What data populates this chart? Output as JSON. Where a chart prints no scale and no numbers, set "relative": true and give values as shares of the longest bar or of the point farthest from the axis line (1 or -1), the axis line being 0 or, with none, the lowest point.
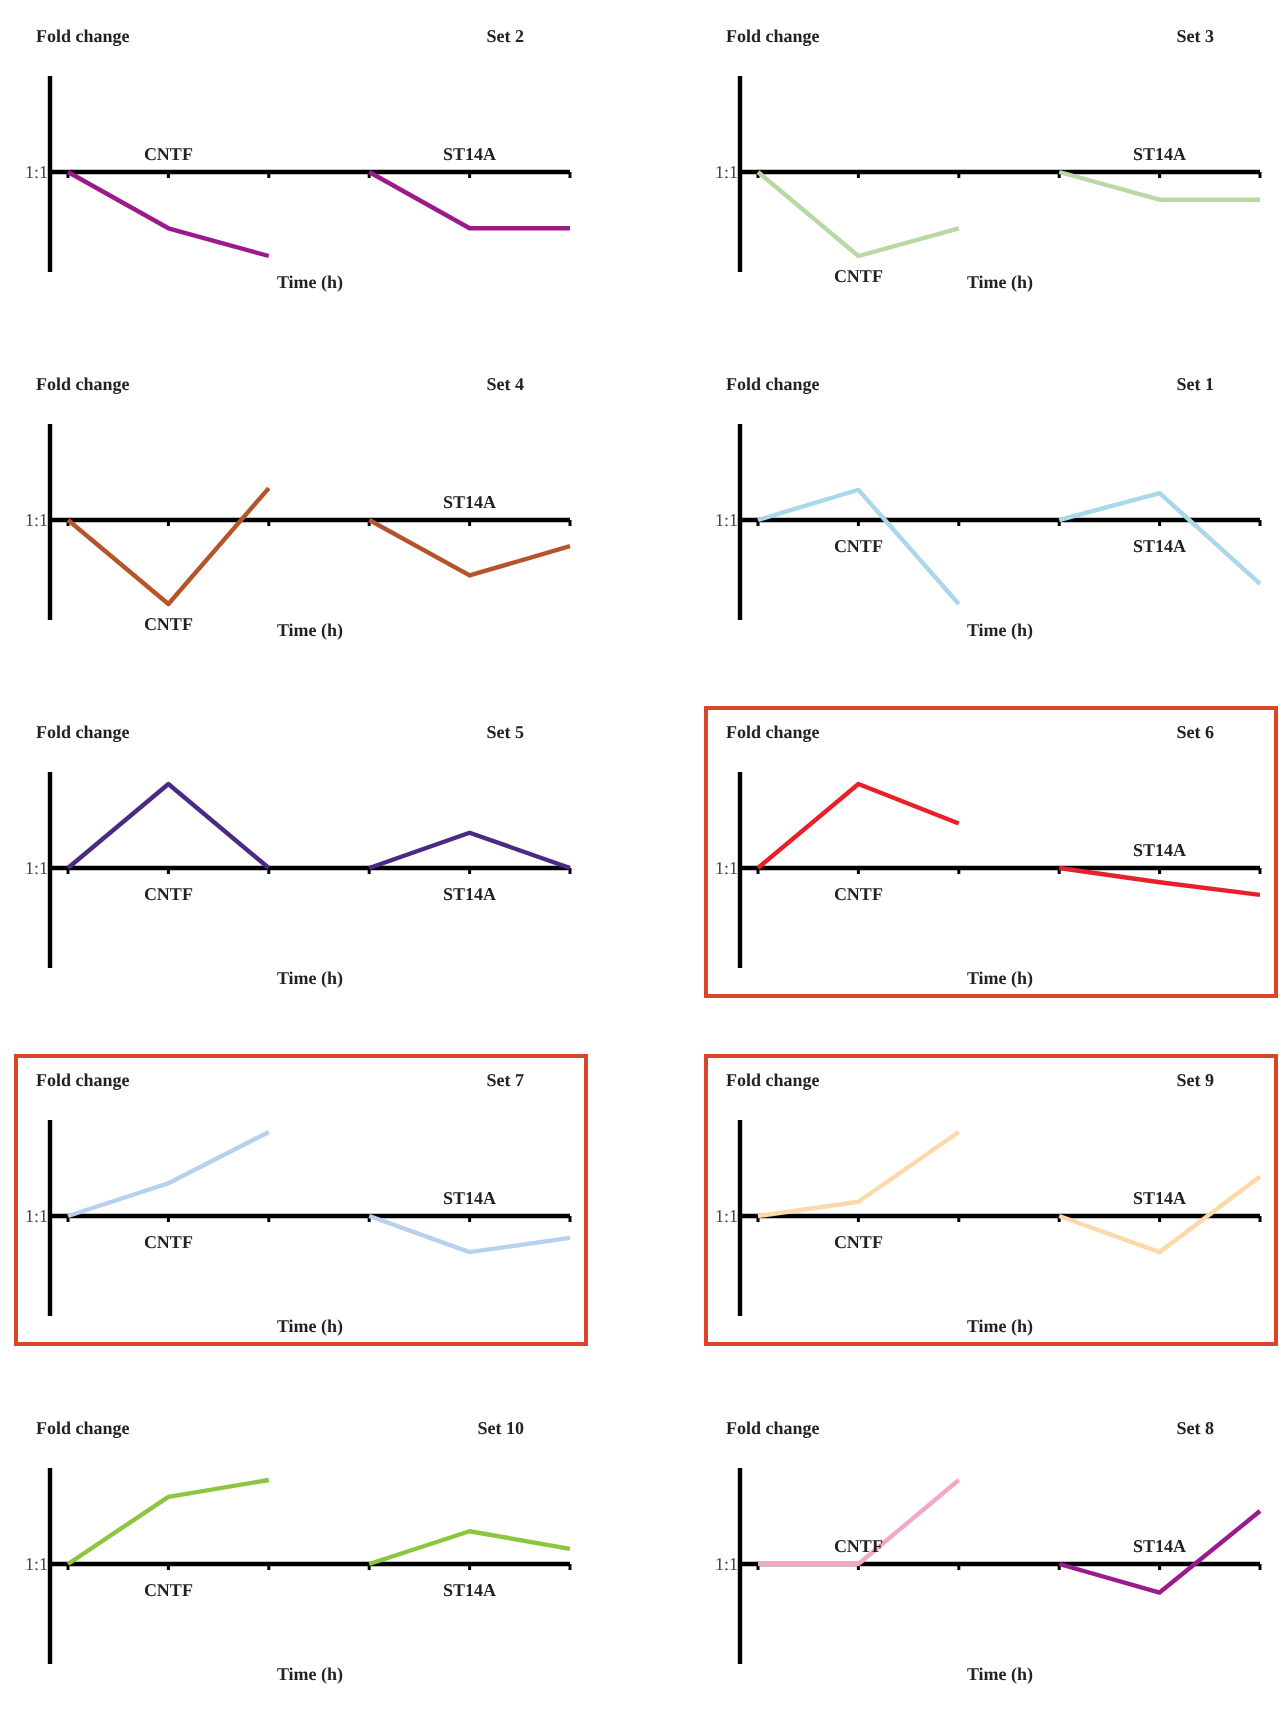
{
  "chart_data": [
    {
      "type": "line",
      "title": "Set 2",
      "ylabel": "Fold change",
      "xlabel": "Time (h)",
      "relative": true,
      "annotations": [
        "1:1"
      ],
      "categories": [
        null,
        null,
        null,
        null,
        null,
        null
      ],
      "series": [
        {
          "name": "CNTF",
          "color": "#9b1a8c",
          "values": [
            0,
            -0.67,
            -1,
            null,
            null,
            null
          ]
        },
        {
          "name": "ST14A",
          "color": "#9b1a8c",
          "values": [
            null,
            null,
            null,
            0,
            -0.67,
            -0.67
          ]
        }
      ]
    },
    {
      "type": "line",
      "title": "Set 3",
      "ylabel": "Fold change",
      "xlabel": "Time (h)",
      "relative": true,
      "annotations": [
        "1:1"
      ],
      "categories": [
        null,
        null,
        null,
        null,
        null,
        null
      ],
      "series": [
        {
          "name": "CNTF",
          "color": "#b8d8a4",
          "values": [
            0,
            -1,
            -0.67,
            null,
            null,
            null
          ]
        },
        {
          "name": "ST14A",
          "color": "#b8d8a4",
          "values": [
            null,
            null,
            null,
            0,
            -0.33,
            -0.33
          ]
        }
      ]
    },
    {
      "type": "line",
      "title": "Set 4",
      "ylabel": "Fold change",
      "xlabel": "Time (h)",
      "relative": true,
      "annotations": [
        "1:1"
      ],
      "categories": [
        null,
        null,
        null,
        null,
        null,
        null
      ],
      "series": [
        {
          "name": "CNTF",
          "color": "#b5532a",
          "values": [
            0,
            -1,
            0.38,
            null,
            null,
            null
          ]
        },
        {
          "name": "ST14A",
          "color": "#b5532a",
          "values": [
            null,
            null,
            null,
            0,
            -0.66,
            -0.31
          ]
        }
      ]
    },
    {
      "type": "line",
      "title": "Set 1",
      "ylabel": "Fold change",
      "xlabel": "Time (h)",
      "relative": true,
      "annotations": [
        "1:1"
      ],
      "categories": [
        null,
        null,
        null,
        null,
        null,
        null
      ],
      "series": [
        {
          "name": "CNTF",
          "color": "#a8d8ea",
          "values": [
            0,
            0.36,
            -1,
            null,
            null,
            null
          ]
        },
        {
          "name": "ST14A",
          "color": "#a8d8ea",
          "values": [
            null,
            null,
            null,
            0,
            0.32,
            -0.76
          ]
        }
      ]
    },
    {
      "type": "line",
      "title": "Set 5",
      "ylabel": "Fold change",
      "xlabel": "Time (h)",
      "relative": true,
      "annotations": [
        "1:1"
      ],
      "categories": [
        null,
        null,
        null,
        null,
        null,
        null
      ],
      "series": [
        {
          "name": "CNTF",
          "color": "#4b2a84",
          "values": [
            0,
            1,
            0,
            null,
            null,
            null
          ]
        },
        {
          "name": "ST14A",
          "color": "#4b2a84",
          "values": [
            null,
            null,
            null,
            0,
            0.42,
            0
          ]
        }
      ]
    },
    {
      "type": "line",
      "title": "Set 6",
      "ylabel": "Fold change",
      "xlabel": "Time (h)",
      "relative": true,
      "annotations": [
        "1:1"
      ],
      "categories": [
        null,
        null,
        null,
        null,
        null,
        null
      ],
      "series": [
        {
          "name": "CNTF",
          "color": "#e8202a",
          "values": [
            0,
            1,
            0.53,
            null,
            null,
            null
          ]
        },
        {
          "name": "ST14A",
          "color": "#e8202a",
          "values": [
            null,
            null,
            null,
            0,
            -0.17,
            -0.32
          ]
        }
      ]
    },
    {
      "type": "line",
      "title": "Set 7",
      "ylabel": "Fold change",
      "xlabel": "Time (h)",
      "relative": true,
      "annotations": [
        "1:1"
      ],
      "categories": [
        null,
        null,
        null,
        null,
        null,
        null
      ],
      "series": [
        {
          "name": "CNTF",
          "color": "#b8d0ee",
          "values": [
            0,
            0.39,
            1,
            null,
            null,
            null
          ]
        },
        {
          "name": "ST14A",
          "color": "#b8d0ee",
          "values": [
            null,
            null,
            null,
            0,
            -0.43,
            -0.26
          ]
        }
      ]
    },
    {
      "type": "line",
      "title": "Set 9",
      "ylabel": "Fold change",
      "xlabel": "Time (h)",
      "relative": true,
      "annotations": [
        "1:1"
      ],
      "categories": [
        null,
        null,
        null,
        null,
        null,
        null
      ],
      "series": [
        {
          "name": "CNTF",
          "color": "#fcd9a8",
          "values": [
            0,
            0.17,
            1,
            null,
            null,
            null
          ]
        },
        {
          "name": "ST14A",
          "color": "#fcd9a8",
          "values": [
            null,
            null,
            null,
            0,
            -0.43,
            0.47
          ]
        }
      ]
    },
    {
      "type": "line",
      "title": "Set 10",
      "ylabel": "Fold change",
      "xlabel": "Time (h)",
      "relative": true,
      "annotations": [
        "1:1"
      ],
      "categories": [
        null,
        null,
        null,
        null,
        null,
        null
      ],
      "series": [
        {
          "name": "CNTF",
          "color": "#8cc63f",
          "values": [
            0,
            0.8,
            1,
            null,
            null,
            null
          ]
        },
        {
          "name": "ST14A",
          "color": "#8cc63f",
          "values": [
            null,
            null,
            null,
            0,
            0.39,
            0.18
          ]
        }
      ]
    },
    {
      "type": "line",
      "title": "Set 8",
      "ylabel": "Fold change",
      "xlabel": "Time (h)",
      "relative": true,
      "annotations": [
        "1:1"
      ],
      "categories": [
        null,
        null,
        null,
        null,
        null,
        null
      ],
      "series": [
        {
          "name": "CNTF",
          "color": "#f4a8c8",
          "values": [
            0,
            0,
            1,
            null,
            null,
            null
          ]
        },
        {
          "name": "ST14A",
          "color": "#9b1a8c",
          "values": [
            null,
            null,
            null,
            0,
            -0.34,
            0.63
          ]
        }
      ]
    }
  ]
}
